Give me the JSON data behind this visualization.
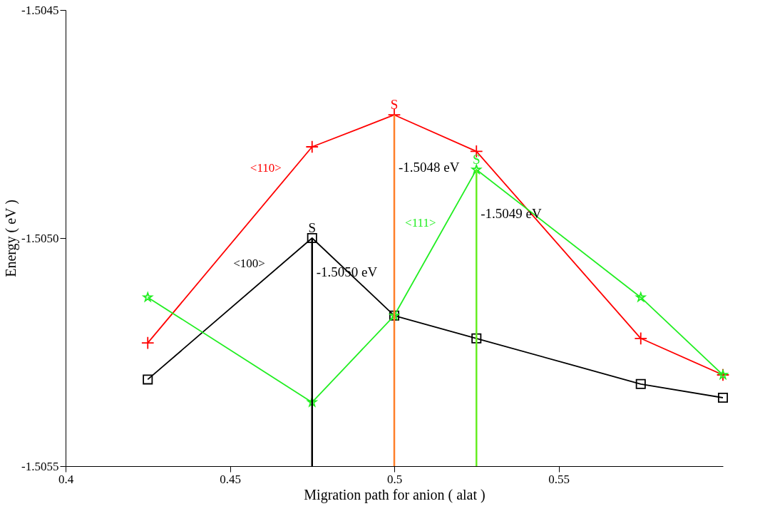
{
  "chart_data": {
    "type": "line",
    "xlabel": "Migration path for anion ( alat )",
    "ylabel": "Energy ( eV )",
    "xlim": [
      0.4,
      0.6
    ],
    "xticks": [
      0.4,
      0.45,
      0.5,
      0.55
    ],
    "ylim": [
      -1.5055,
      -1.5045
    ],
    "yticks": [
      {
        "value": -1.5055,
        "label": "-1.5055"
      },
      {
        "value": -1.505,
        "label": "-1.5050"
      },
      {
        "value": -1.5045,
        "label": "-1.5045"
      }
    ],
    "x": [
      0.425,
      0.475,
      0.5,
      0.525,
      0.575,
      0.6
    ],
    "series": [
      {
        "color": "#000000",
        "marker": "square",
        "values": [
          -1.50531,
          -1.505,
          -1.50517,
          -1.50522,
          -1.50532,
          -1.50535
        ]
      },
      {
        "color": "#ff0000",
        "marker": "cross",
        "values": [
          -1.50523,
          -1.5048,
          -1.50473,
          -1.50481,
          -1.50522,
          -1.5053
        ]
      },
      {
        "color": "#22ee22",
        "marker": "star",
        "values": [
          -1.50513,
          -1.50536,
          -1.50517,
          -1.50485,
          -1.50513,
          -1.5053
        ]
      },
      {
        "name": "-1.5050 eV",
        "color": "#000000",
        "marker": "none",
        "x": [
          0.475,
          0.475
        ],
        "values": [
          -1.505,
          -1.5055
        ]
      },
      {
        "name": "-1.5048 eV",
        "color": "#ff7f2a",
        "marker": "none",
        "x": [
          0.5,
          0.5
        ],
        "values": [
          -1.50473,
          -1.5055
        ]
      },
      {
        "name": "-1.5049 eV",
        "color": "#66ee22",
        "marker": "none",
        "x": [
          0.525,
          0.525
        ],
        "values": [
          -1.50485,
          -1.5055
        ]
      }
    ],
    "annotations": [
      {
        "text": "S",
        "x": 0.475,
        "y": -1.505
      },
      {
        "text": "S",
        "x": 0.5,
        "y": -1.50473
      },
      {
        "text": "S",
        "x": 0.525,
        "y": -1.50485
      },
      {
        "text": "<110>",
        "x": 0.467,
        "y": -1.50487
      },
      {
        "text": "<111>",
        "x": 0.514,
        "y": -1.50499
      },
      {
        "text": "<100>",
        "x": 0.462,
        "y": -1.50508
      }
    ],
    "grid": false
  }
}
